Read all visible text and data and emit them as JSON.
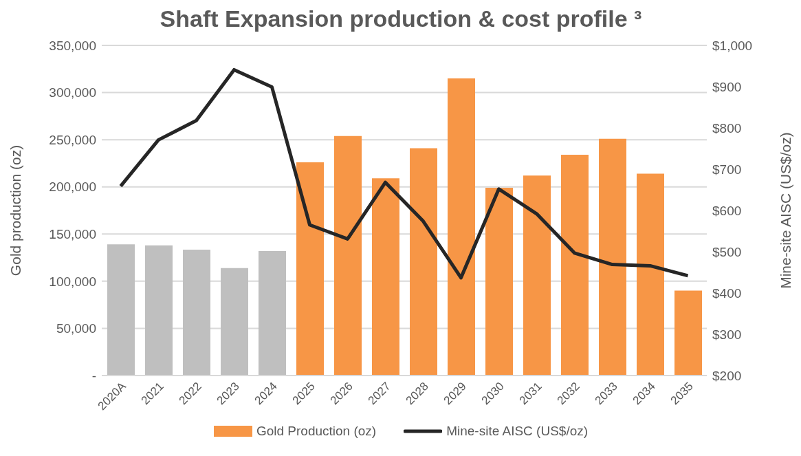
{
  "chart_data": {
    "type": "bar",
    "title": "Shaft Expansion production & cost profile ³",
    "categories": [
      "2020A",
      "2021",
      "2022",
      "2023",
      "2024",
      "2025",
      "2026",
      "2027",
      "2028",
      "2029",
      "2030",
      "2031",
      "2032",
      "2033",
      "2034",
      "2035"
    ],
    "series": [
      {
        "name": "Gold Production (oz)",
        "color": "#f79646",
        "colors": [
          "#bfbfbf",
          "#bfbfbf",
          "#bfbfbf",
          "#bfbfbf",
          "#bfbfbf",
          "#f79646",
          "#f79646",
          "#f79646",
          "#f79646",
          "#f79646",
          "#f79646",
          "#f79646",
          "#f79646",
          "#f79646",
          "#f79646",
          "#f79646"
        ],
        "values": [
          139000,
          138000,
          133500,
          114000,
          132000,
          226000,
          254000,
          209000,
          241000,
          315000,
          199000,
          212000,
          234000,
          251000,
          214000,
          90000
        ]
      },
      {
        "name": "Mine-site AISC (US$/oz)",
        "type": "line",
        "axis": "y2",
        "color": "#262626",
        "values": [
          659,
          771,
          818,
          941,
          899,
          565,
          531,
          668,
          574,
          437,
          652,
          592,
          497,
          469,
          466,
          442
        ]
      }
    ],
    "ylabel": "Gold production (oz)",
    "y2label": "Mine-site AISC (US$/oz)",
    "ylim": [
      0,
      350000
    ],
    "yticks": [
      {
        "value": 0,
        "label": "-"
      },
      {
        "value": 50000,
        "label": "50,000"
      },
      {
        "value": 100000,
        "label": "100,000"
      },
      {
        "value": 150000,
        "label": "150,000"
      },
      {
        "value": 200000,
        "label": "200,000"
      },
      {
        "value": 250000,
        "label": "250,000"
      },
      {
        "value": 300000,
        "label": "300,000"
      },
      {
        "value": 350000,
        "label": "350,000"
      }
    ],
    "y2lim": [
      200,
      1000
    ],
    "y2ticks": [
      {
        "value": 200,
        "label": "$200"
      },
      {
        "value": 300,
        "label": "$300"
      },
      {
        "value": 400,
        "label": "$400"
      },
      {
        "value": 500,
        "label": "$500"
      },
      {
        "value": 600,
        "label": "$600"
      },
      {
        "value": 700,
        "label": "$700"
      },
      {
        "value": 800,
        "label": "$800"
      },
      {
        "value": 900,
        "label": "$900"
      },
      {
        "value": 1000,
        "label": "$1,000"
      }
    ],
    "grid": "y",
    "legend": "bottom",
    "marker": "none",
    "line_style": "solid"
  }
}
